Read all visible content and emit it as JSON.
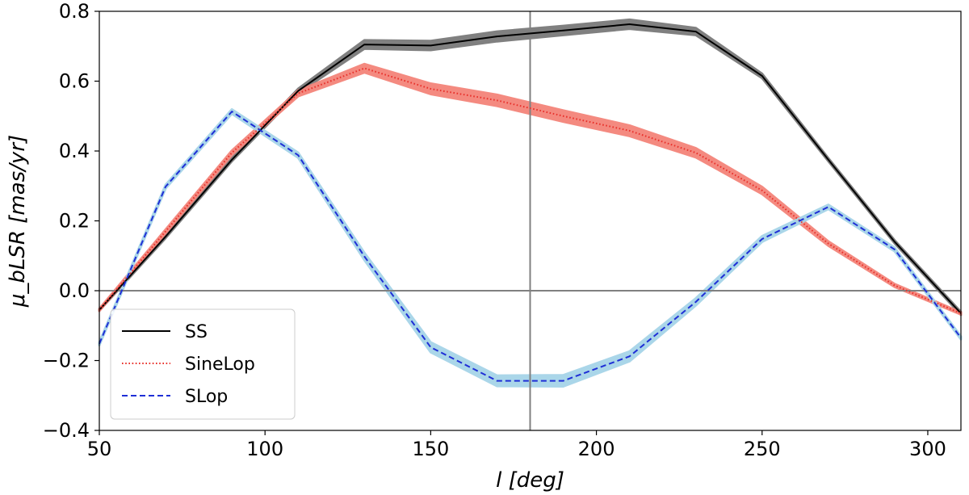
{
  "chart_data": {
    "type": "line",
    "title": "",
    "xlabel": "l [deg]",
    "ylabel": "μ_bLSR [mas/yr]",
    "xlim": [
      50,
      310
    ],
    "ylim": [
      -0.4,
      0.8
    ],
    "xticks": [
      50,
      100,
      150,
      200,
      250,
      300
    ],
    "yticks": [
      -0.4,
      -0.2,
      0.0,
      0.2,
      0.4,
      0.6,
      0.8
    ],
    "xtick_labels": [
      "50",
      "100",
      "150",
      "200",
      "250",
      "300"
    ],
    "ytick_labels": [
      "−0.4",
      "−0.2",
      "0.0",
      "0.2",
      "0.4",
      "0.6",
      "0.8"
    ],
    "reference_lines": {
      "vertical_x": 180,
      "horizontal_y": 0.0
    },
    "legend_position": "bottom-left",
    "series": [
      {
        "name": "SS",
        "line_color": "#000000",
        "band_color": "#7a7a7a",
        "style": "solid",
        "x": [
          50,
          70,
          90,
          110,
          130,
          150,
          170,
          190,
          210,
          230,
          250,
          270,
          290,
          310
        ],
        "y": [
          -0.055,
          0.155,
          0.375,
          0.572,
          0.705,
          0.702,
          0.728,
          0.745,
          0.763,
          0.742,
          0.615,
          0.375,
          0.14,
          -0.065
        ],
        "band_halfwidth": [
          0.002,
          0.004,
          0.004,
          0.006,
          0.012,
          0.013,
          0.014,
          0.013,
          0.013,
          0.01,
          0.006,
          0.004,
          0.004,
          0.004
        ]
      },
      {
        "name": "SineLop",
        "line_color": "#e8302a",
        "band_color": "#f4847a",
        "style": "dotted",
        "x": [
          50,
          70,
          90,
          110,
          130,
          150,
          170,
          190,
          210,
          230,
          250,
          270,
          290,
          310
        ],
        "y": [
          -0.055,
          0.17,
          0.395,
          0.565,
          0.637,
          0.578,
          0.545,
          0.5,
          0.458,
          0.395,
          0.287,
          0.135,
          0.015,
          -0.065
        ],
        "band_halfwidth": [
          0.003,
          0.005,
          0.006,
          0.008,
          0.012,
          0.015,
          0.016,
          0.016,
          0.015,
          0.013,
          0.01,
          0.006,
          0.004,
          0.003
        ]
      },
      {
        "name": "SLop",
        "line_color": "#1f2fd6",
        "band_color": "#a6d4e8",
        "style": "dashed",
        "x": [
          50,
          70,
          90,
          110,
          130,
          150,
          170,
          190,
          210,
          230,
          250,
          270,
          290,
          310
        ],
        "y": [
          -0.152,
          0.298,
          0.513,
          0.388,
          0.098,
          -0.162,
          -0.258,
          -0.258,
          -0.188,
          -0.032,
          0.148,
          0.24,
          0.118,
          -0.135
        ],
        "band_halfwidth": [
          0.004,
          0.005,
          0.006,
          0.007,
          0.01,
          0.014,
          0.015,
          0.016,
          0.014,
          0.01,
          0.008,
          0.006,
          0.005,
          0.004
        ]
      }
    ]
  }
}
